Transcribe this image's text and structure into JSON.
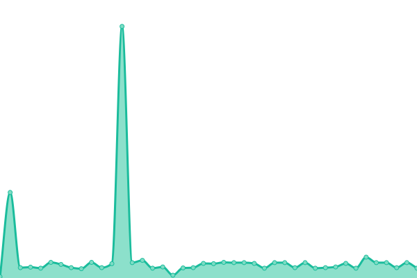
{
  "chart_data": {
    "type": "area",
    "title": "",
    "xlabel": "",
    "ylabel": "",
    "x": [
      0,
      1,
      2,
      3,
      4,
      5,
      6,
      7,
      8,
      9,
      10,
      11,
      12,
      13,
      14,
      15,
      16,
      17,
      18,
      19,
      20,
      21,
      22,
      23,
      24,
      25,
      26,
      27,
      28,
      29,
      30,
      31,
      32,
      33,
      34,
      35,
      36,
      37,
      38,
      39,
      40,
      41
    ],
    "values": [
      0.5,
      34.0,
      4.1,
      4.3,
      3.9,
      6.2,
      5.4,
      4.1,
      3.7,
      6.2,
      4.1,
      5.7,
      100,
      6.1,
      7.0,
      3.9,
      4.4,
      1.1,
      4.0,
      4.1,
      5.8,
      5.7,
      6.2,
      6.1,
      6.1,
      5.8,
      3.9,
      6.1,
      6.1,
      4.1,
      6.1,
      3.9,
      4.1,
      4.4,
      5.8,
      3.9,
      8.3,
      6.1,
      6.1,
      4.1,
      6.1,
      3.9
    ],
    "ylim": [
      0,
      100
    ],
    "grid": false,
    "axes_visible": false,
    "smooth": true,
    "colors": {
      "line": "#1abc9c",
      "fill": "#8ce0cb",
      "marker": "#7ddcc4"
    }
  }
}
